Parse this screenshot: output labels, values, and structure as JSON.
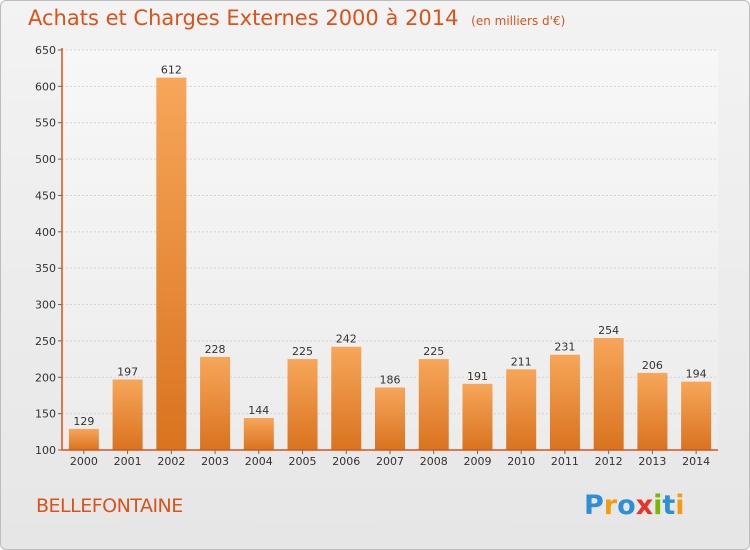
{
  "title": "Achats et Charges Externes 2000 à 2014",
  "subtitle": "(en milliers d'€)",
  "commune": "BELLEFONTAINE",
  "logo": {
    "letters": [
      "P",
      "r",
      "o",
      "x",
      "i",
      "t",
      "i"
    ],
    "colors": [
      "#2e8fd6",
      "#f39c12",
      "#2e8fd6",
      "#e8322a",
      "#7ab800",
      "#2e8fd6",
      "#f39c12"
    ]
  },
  "colors": {
    "accent": "#d9531a",
    "bar_light": "#f7a65a",
    "bar_dark": "#d9731f",
    "axis": "#d9531a",
    "grid": "#d3d3d3"
  },
  "chart_data": {
    "type": "bar",
    "categories": [
      "2000",
      "2001",
      "2002",
      "2003",
      "2004",
      "2005",
      "2006",
      "2007",
      "2008",
      "2009",
      "2010",
      "2011",
      "2012",
      "2013",
      "2014"
    ],
    "values": [
      129,
      197,
      612,
      228,
      144,
      225,
      242,
      186,
      225,
      191,
      211,
      231,
      254,
      206,
      194
    ],
    "ylim": [
      100,
      650
    ],
    "yticks": [
      100,
      150,
      200,
      250,
      300,
      350,
      400,
      450,
      500,
      550,
      600,
      650
    ],
    "grid": true
  }
}
